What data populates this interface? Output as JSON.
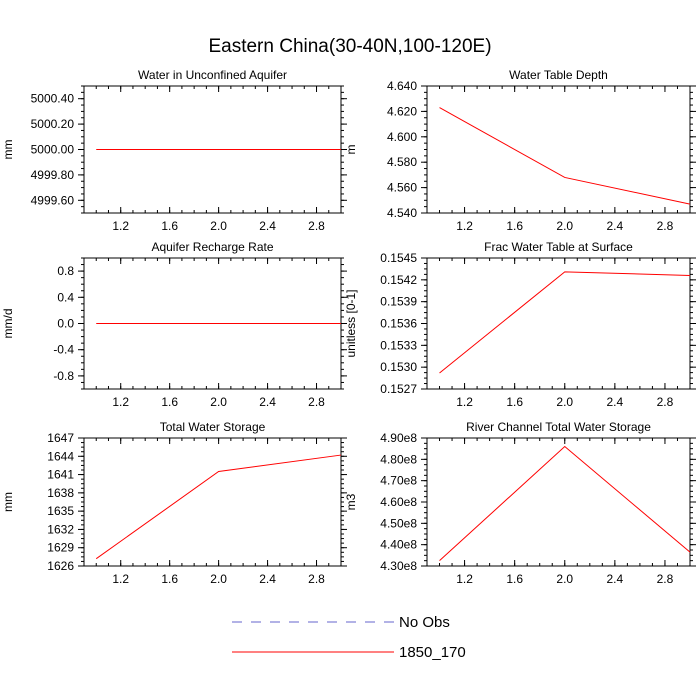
{
  "figure": {
    "title": "Eastern China(30-40N,100-120E)"
  },
  "legend": {
    "entries": [
      {
        "label": "No Obs",
        "color": "#6666cc",
        "dash": "dashed"
      },
      {
        "label": "1850_170",
        "color": "#ff0000",
        "dash": "solid"
      }
    ]
  },
  "chart_data": [
    {
      "type": "line",
      "title": "Water in Unconfined Aquifer",
      "ylabel": "mm",
      "xlim": [
        0.9,
        3.0
      ],
      "ylim": [
        4999.5,
        5000.5
      ],
      "xticks": [
        1.2,
        1.6,
        2.0,
        2.4,
        2.8
      ],
      "xtick_labels": [
        "1.2",
        "1.6",
        "2.0",
        "2.4",
        "2.8"
      ],
      "yticks": [
        4999.6,
        4999.8,
        5000.0,
        5000.2,
        5000.4
      ],
      "ytick_labels": [
        "4999.60",
        "4999.80",
        "5000.00",
        "5000.20",
        "5000.40"
      ],
      "series": [
        {
          "name": "1850_170",
          "color": "#ff0000",
          "x": [
            1,
            2,
            3
          ],
          "y": [
            5000.0,
            5000.0,
            5000.0
          ]
        }
      ]
    },
    {
      "type": "line",
      "title": "Water Table Depth",
      "ylabel": "m",
      "xlim": [
        0.9,
        3.0
      ],
      "ylim": [
        4.54,
        4.64
      ],
      "xticks": [
        1.2,
        1.6,
        2.0,
        2.4,
        2.8
      ],
      "xtick_labels": [
        "1.2",
        "1.6",
        "2.0",
        "2.4",
        "2.8"
      ],
      "yticks": [
        4.54,
        4.56,
        4.58,
        4.6,
        4.62,
        4.64
      ],
      "ytick_labels": [
        "4.540",
        "4.560",
        "4.580",
        "4.600",
        "4.620",
        "4.640"
      ],
      "series": [
        {
          "name": "1850_170",
          "color": "#ff0000",
          "x": [
            1,
            2,
            3
          ],
          "y": [
            4.623,
            4.568,
            4.547
          ]
        }
      ]
    },
    {
      "type": "line",
      "title": "Aquifer Recharge Rate",
      "ylabel": "mm/d",
      "xlim": [
        0.9,
        3.0
      ],
      "ylim": [
        -1.0,
        1.0
      ],
      "xticks": [
        1.2,
        1.6,
        2.0,
        2.4,
        2.8
      ],
      "xtick_labels": [
        "1.2",
        "1.6",
        "2.0",
        "2.4",
        "2.8"
      ],
      "yticks": [
        -0.8,
        -0.4,
        0.0,
        0.4,
        0.8
      ],
      "ytick_labels": [
        "-0.8",
        "-0.4",
        "0.0",
        "0.4",
        "0.8"
      ],
      "series": [
        {
          "name": "1850_170",
          "color": "#ff0000",
          "x": [
            1,
            2,
            3
          ],
          "y": [
            0.0,
            0.0,
            0.0
          ]
        }
      ]
    },
    {
      "type": "line",
      "title": "Frac Water Table at Surface",
      "ylabel": "unitless [0-1]",
      "xlim": [
        0.9,
        3.0
      ],
      "ylim": [
        0.1527,
        0.1545
      ],
      "xticks": [
        1.2,
        1.6,
        2.0,
        2.4,
        2.8
      ],
      "xtick_labels": [
        "1.2",
        "1.6",
        "2.0",
        "2.4",
        "2.8"
      ],
      "yticks": [
        0.1527,
        0.153,
        0.1533,
        0.1536,
        0.1539,
        0.1542,
        0.1545
      ],
      "ytick_labels": [
        "0.1527",
        "0.1530",
        "0.1533",
        "0.1536",
        "0.1539",
        "0.1542",
        "0.1545"
      ],
      "series": [
        {
          "name": "1850_170",
          "color": "#ff0000",
          "x": [
            1,
            2,
            3
          ],
          "y": [
            0.15292,
            0.15431,
            0.15426
          ]
        }
      ]
    },
    {
      "type": "line",
      "title": "Total Water Storage",
      "ylabel": "mm",
      "xlim": [
        0.9,
        3.0
      ],
      "ylim": [
        1626,
        1647
      ],
      "xticks": [
        1.2,
        1.6,
        2.0,
        2.4,
        2.8
      ],
      "xtick_labels": [
        "1.2",
        "1.6",
        "2.0",
        "2.4",
        "2.8"
      ],
      "yticks": [
        1626,
        1629,
        1632,
        1635,
        1638,
        1641,
        1644,
        1647
      ],
      "ytick_labels": [
        "1626",
        "1629",
        "1632",
        "1635",
        "1638",
        "1641",
        "1644",
        "1647"
      ],
      "series": [
        {
          "name": "1850_170",
          "color": "#ff0000",
          "x": [
            1,
            2,
            3
          ],
          "y": [
            1627.2,
            1641.5,
            1644.2
          ]
        }
      ]
    },
    {
      "type": "line",
      "title": "River Channel Total Water Storage",
      "ylabel": "m3",
      "xlim": [
        0.9,
        3.0
      ],
      "ylim": [
        430000000,
        490000000
      ],
      "xticks": [
        1.2,
        1.6,
        2.0,
        2.4,
        2.8
      ],
      "xtick_labels": [
        "1.2",
        "1.6",
        "2.0",
        "2.4",
        "2.8"
      ],
      "yticks": [
        430000000,
        440000000,
        450000000,
        460000000,
        470000000,
        480000000,
        490000000
      ],
      "ytick_labels": [
        "4.30e8",
        "4.40e8",
        "4.50e8",
        "4.60e8",
        "4.70e8",
        "4.80e8",
        "4.90e8"
      ],
      "series": [
        {
          "name": "1850_170",
          "color": "#ff0000",
          "x": [
            1,
            2,
            3
          ],
          "y": [
            432500000,
            486000000,
            436500000
          ]
        }
      ]
    }
  ]
}
